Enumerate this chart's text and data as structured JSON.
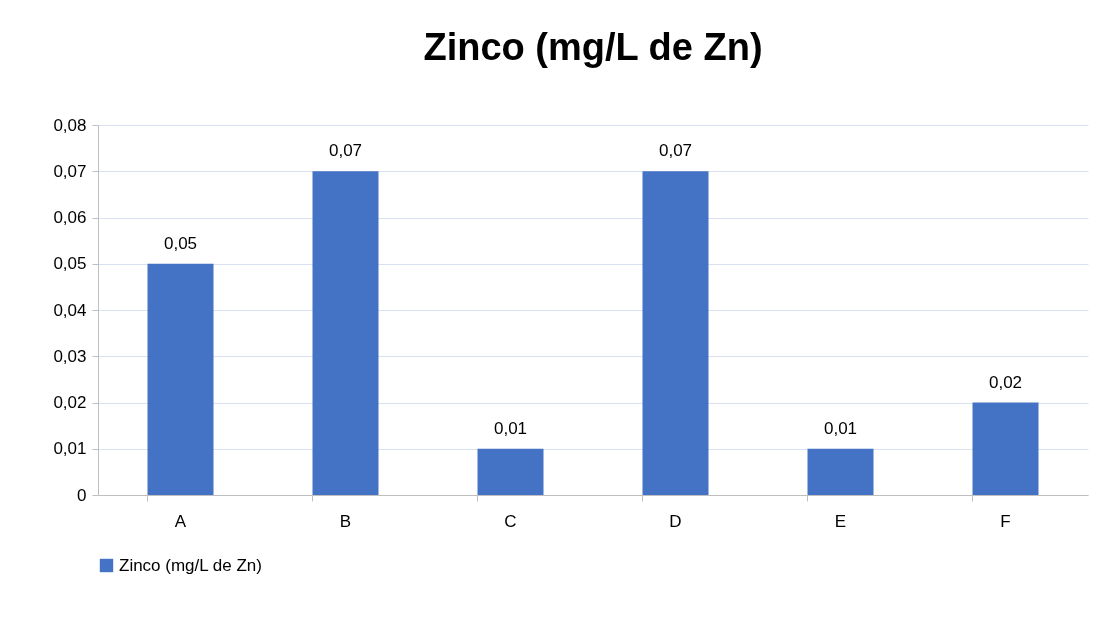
{
  "chart_data": {
    "type": "bar",
    "title": "Zinco (mg/L de Zn)",
    "categories": [
      "A",
      "B",
      "C",
      "D",
      "E",
      "F"
    ],
    "series": [
      {
        "name": "Zinco (mg/L de Zn)",
        "color": "#4472c4",
        "values": [
          0.05,
          0.07,
          0.01,
          0.07,
          0.01,
          0.02
        ],
        "value_labels": [
          "0,05",
          "0,07",
          "0,01",
          "0,07",
          "0,01",
          "0,02"
        ]
      }
    ],
    "ylim": [
      0,
      0.08
    ],
    "yticks": [
      0,
      {
        "value": 0.01,
        "label": "0,01"
      },
      {
        "value": 0.02,
        "label": "0,02"
      },
      {
        "value": 0.03,
        "label": "0,03"
      },
      {
        "value": 0.04,
        "label": "0,04"
      },
      {
        "value": 0.05,
        "label": "0,05"
      },
      {
        "value": 0.06,
        "label": "0,06"
      },
      {
        "value": 0.07,
        "label": "0,07"
      },
      {
        "value": 0.08,
        "label": "0,08"
      }
    ],
    "grid": "y",
    "legend": "bottom"
  }
}
